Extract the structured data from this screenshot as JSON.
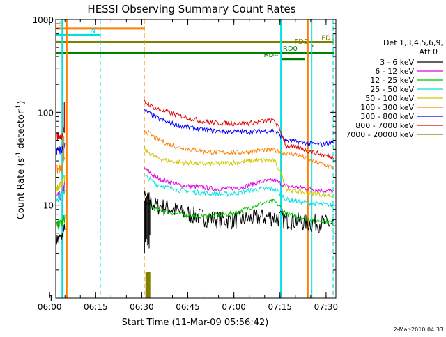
{
  "chart_data": {
    "type": "line",
    "title": "HESSI Observing Summary Count Rates",
    "xlabel": "Start Time (11-Mar-09 05:56:42)",
    "ylabel_main": "Count Rate (s",
    "ylabel_sup1": "-1",
    "ylabel_mid": " detector",
    "ylabel_sup2": "-1",
    "ylabel_end": ")",
    "yscale": "log",
    "ylim": [
      1,
      1000
    ],
    "xlim_minutes": [
      5.3,
      96.5
    ],
    "xticks": [
      {
        "minute": 3.3,
        "label": "06:00"
      },
      {
        "minute": 18.3,
        "label": "06:15"
      },
      {
        "minute": 33.3,
        "label": "06:30"
      },
      {
        "minute": 48.3,
        "label": "06:45"
      },
      {
        "minute": 63.3,
        "label": "07:00"
      },
      {
        "minute": 78.3,
        "label": "07:15"
      },
      {
        "minute": 93.3,
        "label": "07:30"
      }
    ],
    "yticks": [
      {
        "value": 1,
        "label": "1"
      },
      {
        "value": 10,
        "label": "10"
      },
      {
        "value": 100,
        "label": "100"
      },
      {
        "value": 1000,
        "label": "1000"
      }
    ],
    "legend_header1": "Det 1,3,4,5,6,9,",
    "legend_header2": "Att 0",
    "legend_placement": "right",
    "timestamp": "2-Mar-2010 04:33",
    "series": [
      {
        "name": "3 - 6 keV",
        "color": "#000000",
        "pre": [
          4.3,
          4.5,
          4.6,
          6.0
        ],
        "post": [
          12,
          10,
          9.5,
          8.5,
          8,
          7.5,
          7.2,
          7,
          7,
          7.2,
          7.5,
          7.5,
          7,
          6.8,
          6.5,
          6.5,
          6.3
        ]
      },
      {
        "name": "6 - 12 keV",
        "color": "#e000e0",
        "pre": [
          12,
          12.5,
          13,
          17
        ],
        "post": [
          25,
          20,
          18,
          16.5,
          16,
          15.5,
          15,
          15,
          15.5,
          16.5,
          18,
          18.5,
          16,
          15.5,
          15,
          14.5,
          14
        ]
      },
      {
        "name": "12 - 25 keV",
        "color": "#00c000",
        "pre": [
          6,
          6.2,
          6.5,
          7.5
        ],
        "post": [
          11,
          9,
          8.5,
          8,
          7.8,
          7.6,
          7.8,
          8,
          8.5,
          9.5,
          10.5,
          11,
          8,
          7.5,
          7,
          6.8,
          6.5
        ]
      },
      {
        "name": "25 - 50 keV",
        "color": "#00e0e0",
        "pre": [
          12,
          12.5,
          13,
          15
        ],
        "post": [
          21,
          17,
          15.5,
          14.5,
          14,
          13.5,
          13.2,
          13.2,
          13.5,
          14.5,
          15,
          15,
          11.5,
          11,
          10.5,
          10.2,
          10
        ]
      },
      {
        "name": "50 - 100 keV",
        "color": "#d0c800",
        "pre": [
          16,
          16.5,
          17,
          20
        ],
        "post": [
          40,
          33,
          30,
          29,
          28.5,
          28,
          28,
          28.5,
          29,
          30,
          30.5,
          30,
          15,
          14,
          13.5,
          13,
          12.5
        ]
      },
      {
        "name": "100 - 300 keV",
        "color": "#ff8000",
        "pre": [
          24,
          24.5,
          25,
          30
        ],
        "post": [
          65,
          52,
          46,
          42,
          40,
          38,
          37,
          37,
          37,
          38,
          39,
          39,
          36,
          35,
          30,
          28,
          25
        ]
      },
      {
        "name": "300 - 800 keV",
        "color": "#0000ff",
        "pre": [
          38,
          39,
          40,
          48
        ],
        "post": [
          105,
          88,
          78,
          72,
          68,
          65,
          63,
          62,
          62,
          62,
          63,
          63,
          50,
          48,
          46,
          45,
          48
        ]
      },
      {
        "name": "800 - 7000 keV",
        "color": "#e00000",
        "pre": [
          55,
          56,
          58,
          70
        ],
        "post": [
          130,
          110,
          100,
          92,
          86,
          80,
          77,
          76,
          76,
          77,
          80,
          82,
          43,
          42,
          38,
          35,
          33
        ]
      },
      {
        "name": "7000 - 20000 keV",
        "color": "#808000",
        "pre": [],
        "post": []
      }
    ],
    "post_x_start": 34,
    "post_x_end": 95.8,
    "pre_x_start": 5.6,
    "pre_x_end": 8.3,
    "spike_series": {
      "red_end": 55,
      "orange_end": 130
    },
    "flag_bars": [
      {
        "label": "S",
        "color": "#ff8000",
        "start": 5.5,
        "end": 34.3,
        "value": 800
      },
      {
        "label": "N",
        "color": "#00e0e0",
        "start": 5.5,
        "end": 19.8,
        "value": 680
      },
      {
        "label": "FD1",
        "color": "#808000",
        "start": 5.5,
        "end": 96.0,
        "value": 570
      },
      {
        "label": "FD2",
        "color": "#808000",
        "start": 88.6,
        "end": 89.1,
        "value": 520
      },
      {
        "label": "RD0",
        "color": "#008000",
        "start": 5.5,
        "end": 96.0,
        "value": 440
      },
      {
        "label": "RD4",
        "color": "#008000",
        "start": 78.5,
        "end": 86.5,
        "value": 375
      }
    ],
    "vertical_markers": [
      {
        "minute": 7.4,
        "color": "#00e0e0",
        "style": "solid"
      },
      {
        "minute": 8.9,
        "color": "#ff8000",
        "style": "solid"
      },
      {
        "minute": 19.8,
        "color": "#00e0e0",
        "style": "dashed"
      },
      {
        "minute": 34.1,
        "color": "#ff8000",
        "style": "dashed"
      },
      {
        "minute": 78.6,
        "color": "#00e0e0",
        "style": "solid"
      },
      {
        "minute": 87.4,
        "color": "#ff8000",
        "style": "solid"
      },
      {
        "minute": 88.6,
        "color": "#00e0e0",
        "style": "solid"
      },
      {
        "minute": 95.6,
        "color": "#00e0e0",
        "style": "dashed"
      }
    ]
  }
}
